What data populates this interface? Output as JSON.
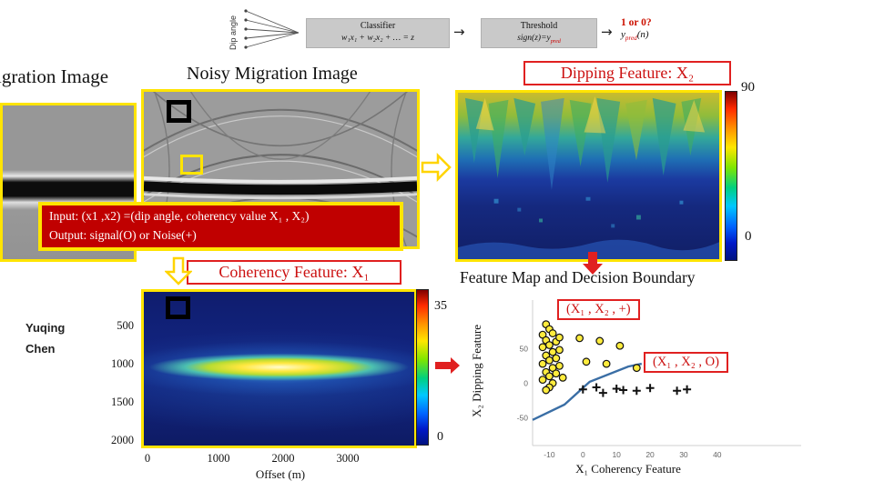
{
  "top_diagram": {
    "dip_angle_label": "Dip angle",
    "classifier_label": "Classifier",
    "classifier_formula": "w₁x₁ + w₂x₂ + … = z",
    "flow_arrow": "→",
    "threshold_label": "Threshold",
    "threshold_formula_prefix": "sign(z)=y",
    "threshold_formula_sub": "pred",
    "output_question": "1 or 0?",
    "output_var_prefix": "y",
    "output_var_sub": "pred",
    "output_var_suffix": "(n)"
  },
  "titles": {
    "migration": "igration Image",
    "noisy": "Noisy Migration Image",
    "dipping_feature": "Dipping Feature: X₂",
    "coherency_feature": "Coherency Feature: X₁",
    "feature_map": "Feature Map and Decision Boundary"
  },
  "input_box": {
    "line1": "Input: (x1 ,x2) =(dip angle, coherency value X₁ , X₂)",
    "line2": "Output: signal(O) or Noise(+)"
  },
  "author": {
    "line1": "Yuqing",
    "line2": "Chen"
  },
  "dipping_colorbar": {
    "max": "90",
    "min": "0"
  },
  "coherency_axes": {
    "y_ticks": [
      "500",
      "1000",
      "1500",
      "2000"
    ],
    "x_ticks": [
      "0",
      "1000",
      "2000",
      "3000"
    ],
    "xlabel": "Offset (m)",
    "colorbar_max": "35",
    "colorbar_min": "0"
  },
  "feature_map": {
    "legend_plus": "(X₁ , X₂ , +)",
    "legend_circle": "(X₁ , X₂ , O)",
    "xlabel": "X₁ Coherency Feature",
    "ylabel": "X₂ Dipping Feature"
  },
  "chart_data": {
    "type": "scatter",
    "title": "Feature Map and Decision Boundary",
    "xlabel": "X₁ Coherency Feature",
    "ylabel": "X₂ Dipping Feature",
    "xlim": [
      -15,
      65
    ],
    "ylim": [
      -90,
      120
    ],
    "x_ticks": [
      -10,
      0,
      10,
      20,
      30,
      40
    ],
    "y_ticks": [
      50,
      0,
      -50
    ],
    "annotations": [
      "(X₁ , X₂ , +)",
      "(X₁ , X₂ , O)"
    ],
    "series": [
      {
        "name": "signal (X₁ , X₂ , O)",
        "marker": "circle",
        "fill": "#ffec3d",
        "stroke": "#111111",
        "points": [
          [
            -11,
            85
          ],
          [
            -10,
            78
          ],
          [
            -12,
            70
          ],
          [
            -9,
            72
          ],
          [
            -11,
            62
          ],
          [
            -10,
            55
          ],
          [
            -8,
            60
          ],
          [
            -12,
            52
          ],
          [
            -9,
            45
          ],
          [
            -11,
            40
          ],
          [
            -10,
            33
          ],
          [
            -8,
            36
          ],
          [
            -12,
            28
          ],
          [
            -9,
            22
          ],
          [
            -11,
            16
          ],
          [
            -10,
            10
          ],
          [
            -8,
            14
          ],
          [
            -12,
            5
          ],
          [
            -9,
            0
          ],
          [
            -10,
            -6
          ],
          [
            -11,
            -10
          ],
          [
            -7,
            66
          ],
          [
            -7,
            48
          ],
          [
            -7,
            25
          ],
          [
            -6,
            8
          ],
          [
            -1,
            65
          ],
          [
            5,
            61
          ],
          [
            11,
            54
          ],
          [
            1,
            31
          ],
          [
            7,
            28
          ],
          [
            16,
            22
          ]
        ]
      },
      {
        "name": "noise (X₁ , X₂ , +)",
        "marker": "plus",
        "stroke": "#111111",
        "points": [
          [
            0,
            -9
          ],
          [
            4,
            -6
          ],
          [
            6,
            -14
          ],
          [
            10,
            -8
          ],
          [
            12,
            -10
          ],
          [
            16,
            -11
          ],
          [
            20,
            -7
          ],
          [
            28,
            -11
          ],
          [
            31,
            -9
          ]
        ]
      }
    ],
    "boundary": {
      "color": "#3a6ea5",
      "points": [
        [
          -15,
          -53
        ],
        [
          -5.5,
          -31
        ],
        [
          2,
          2
        ],
        [
          13.5,
          24
        ],
        [
          17.5,
          28
        ]
      ]
    }
  }
}
